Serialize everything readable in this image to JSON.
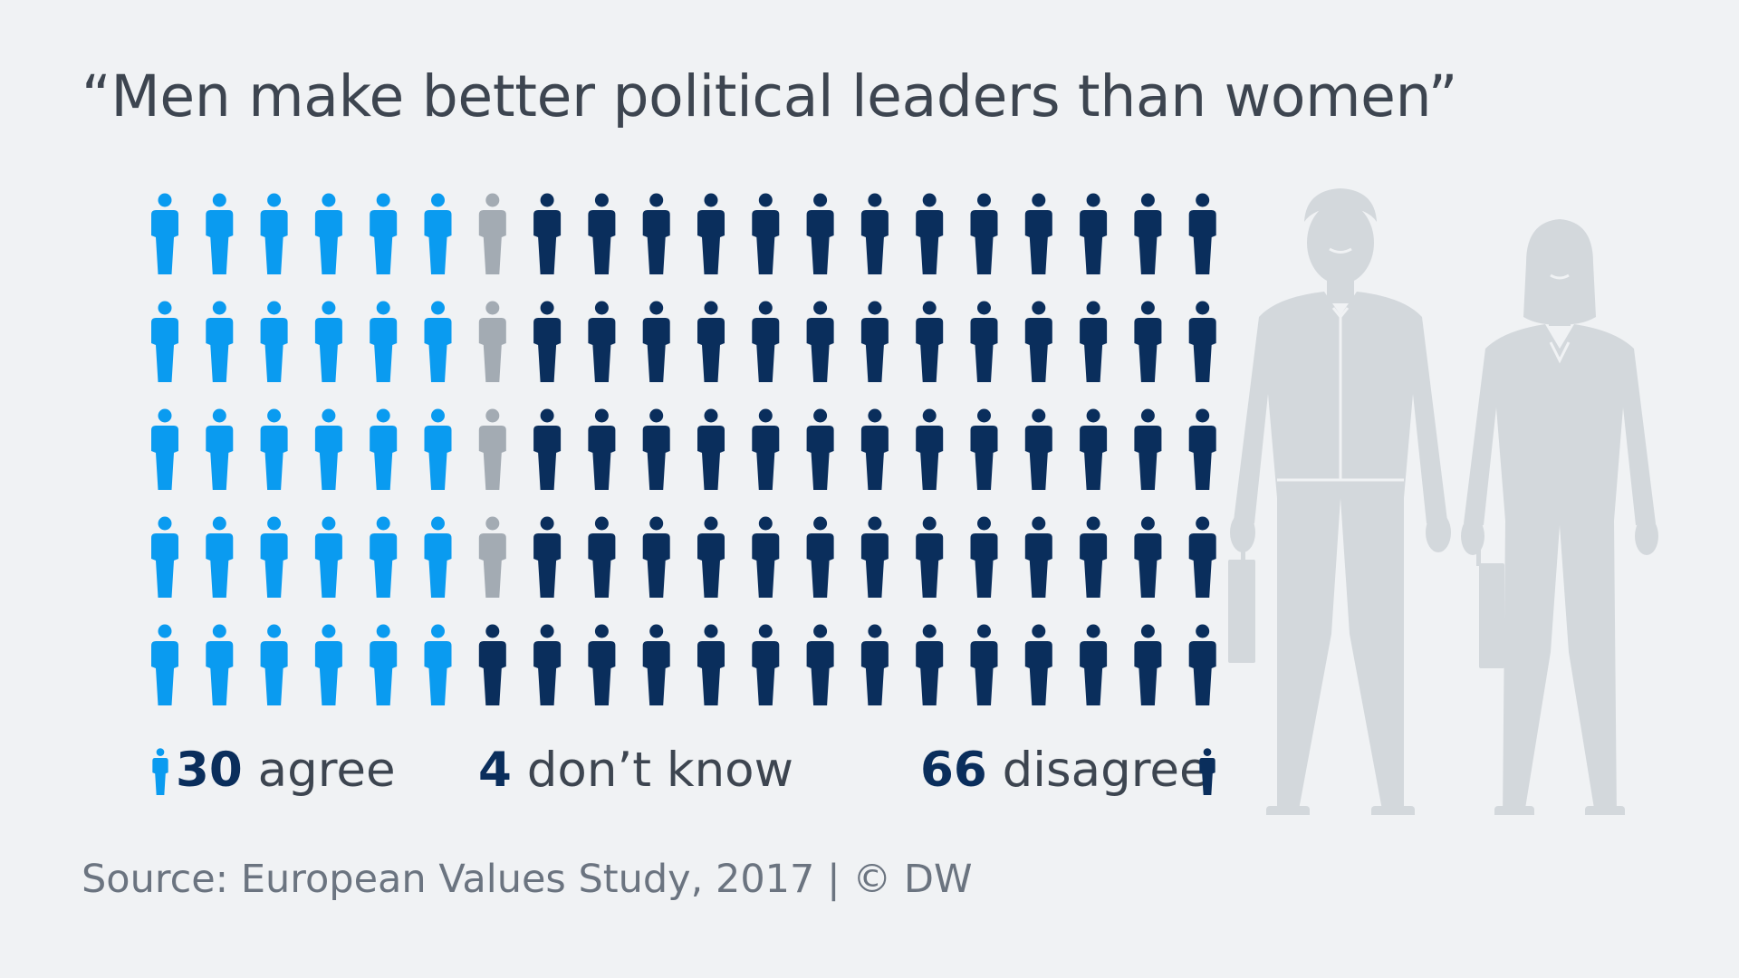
{
  "title": "“Men make better political leaders than women”",
  "chart_data": {
    "type": "pictogram",
    "total": 100,
    "grid_rows": 5,
    "grid_cols": 20,
    "categories": [
      {
        "key": "agree",
        "value": 30,
        "label": "agree",
        "color": "#0a9bf0"
      },
      {
        "key": "dont_know",
        "value": 4,
        "label": "don’t know",
        "color": "#a3abb3"
      },
      {
        "key": "disagree",
        "value": 66,
        "label": "disagree",
        "color": "#0a2e5c"
      }
    ]
  },
  "legend": {
    "agree": {
      "value": "30",
      "label": "agree"
    },
    "dont_know": {
      "value": "4",
      "label": "don’t know"
    },
    "disagree": {
      "value": "66",
      "label": "disagree"
    }
  },
  "source": "Source: European Values Study, 2017 | © DW",
  "colors": {
    "background": "#f0f2f4",
    "illustration": "#d3d8dc",
    "text": "#3d4550"
  }
}
